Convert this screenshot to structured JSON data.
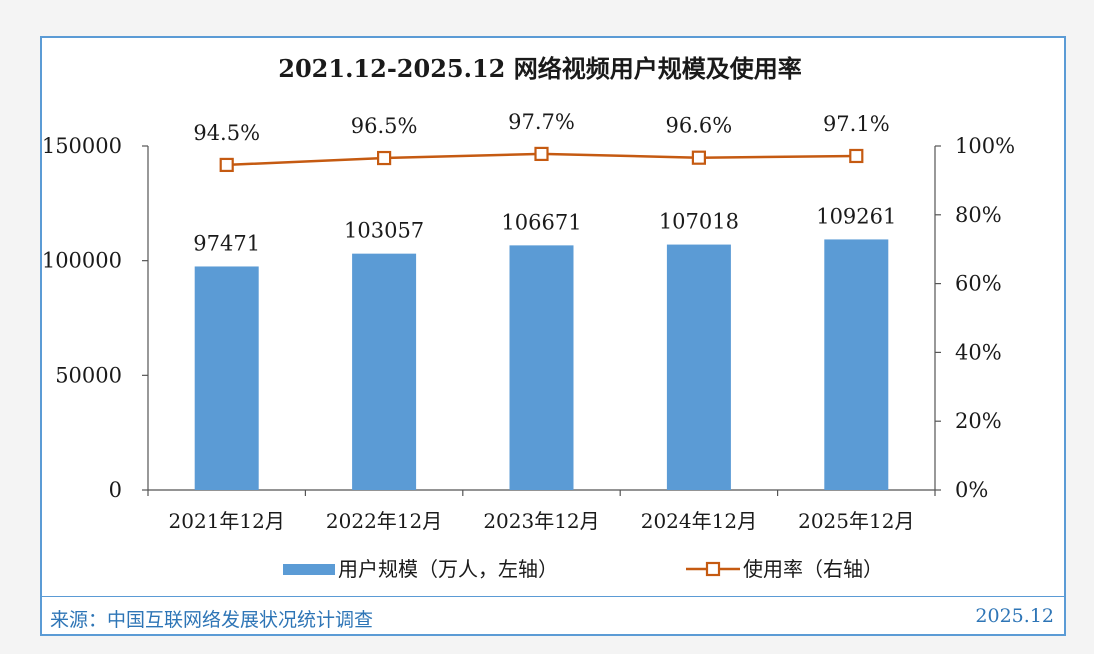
{
  "chart_data": {
    "type": "bar",
    "title": "2021.12-2025.12 网络视频用户规模及使用率",
    "categories": [
      "2021年12月",
      "2022年12月",
      "2023年12月",
      "2024年12月",
      "2025年12月"
    ],
    "series": [
      {
        "name": "用户规模（万人，左轴）",
        "type": "bar",
        "axis": "left",
        "values": [
          97471,
          103057,
          106671,
          107018,
          109261
        ],
        "labels": [
          "97471",
          "103057",
          "106671",
          "107018",
          "109261"
        ],
        "color": "#5b9bd5"
      },
      {
        "name": "使用率（右轴）",
        "type": "line",
        "axis": "right",
        "values": [
          94.5,
          96.5,
          97.7,
          96.6,
          97.1
        ],
        "labels": [
          "94.5%",
          "96.5%",
          "97.7%",
          "96.6%",
          "97.1%"
        ],
        "color": "#c55a11"
      }
    ],
    "y_left": {
      "min": 0,
      "max": 150000,
      "ticks": [
        0,
        50000,
        100000,
        150000
      ],
      "tick_labels": [
        "0",
        "50000",
        "100000",
        "150000"
      ]
    },
    "y_right": {
      "min": 0,
      "max": 100,
      "ticks": [
        0,
        20,
        40,
        60,
        80,
        100
      ],
      "tick_labels": [
        "0%",
        "20%",
        "40%",
        "60%",
        "80%",
        "100%"
      ]
    },
    "grid": false,
    "legend_position": "bottom"
  },
  "footer": {
    "source": "来源：中国互联网络发展状况统计调查",
    "date": "2025.12"
  }
}
